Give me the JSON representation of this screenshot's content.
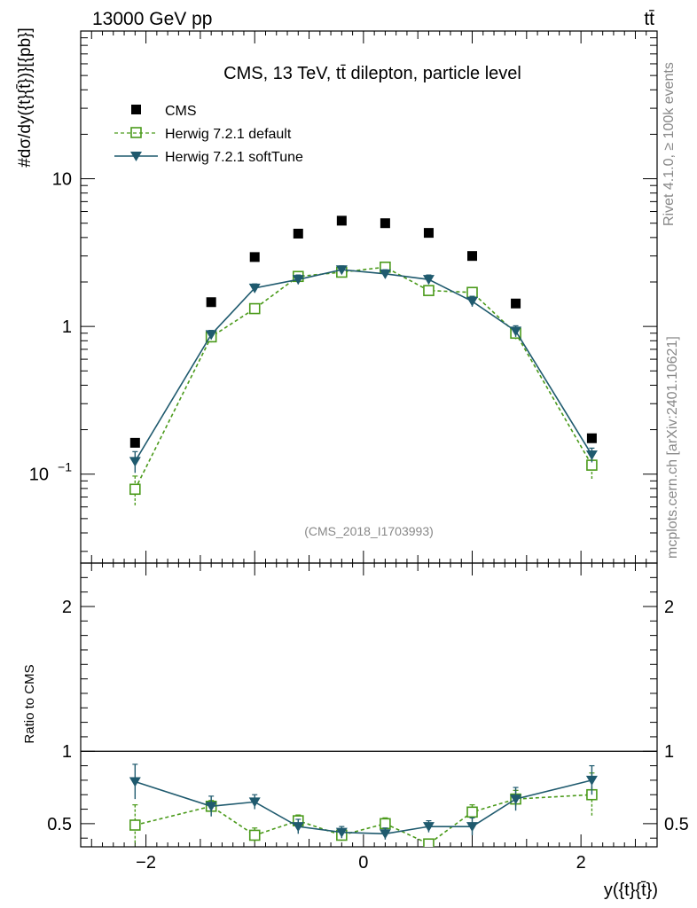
{
  "header": {
    "left": "13000 GeV pp",
    "right": "tt̄"
  },
  "side": {
    "rivet": "Rivet 4.1.0, ≥ 100k events",
    "mcplots": "mcplots.cern.ch [arXiv:2401.10621]"
  },
  "colors": {
    "cms": "#000000",
    "default": "#4a9a1a",
    "soft": "#1f5a6e"
  },
  "chart_data": [
    {
      "type": "scatter",
      "title": "CMS, 13 TeV, tt̄ dilepton, particle level",
      "ylabel": "#dσ/dy({t}{t̄})}[{pb}]",
      "xlabel": "y({t}{t̄})",
      "watermark": "(CMS_2018_I1703993)",
      "xlim": [
        -2.6,
        2.7
      ],
      "ylim": [
        0.025,
        100
      ],
      "yscale": "log",
      "yticks": [
        {
          "v": 0.1,
          "label": "10",
          "sup": "−1"
        },
        {
          "v": 1,
          "label": "1",
          "sup": ""
        },
        {
          "v": 10,
          "label": "10",
          "sup": ""
        }
      ],
      "x": [
        -2.1,
        -1.4,
        -1.0,
        -0.6,
        -0.2,
        0.2,
        0.6,
        1.0,
        1.4,
        2.1
      ],
      "series": [
        {
          "name": "CMS",
          "values": [
            0.163,
            1.46,
            2.95,
            4.25,
            5.2,
            5.0,
            4.3,
            3.0,
            1.43,
            0.175
          ]
        },
        {
          "name": "Herwig 7.2.1 default",
          "values": [
            0.079,
            0.85,
            1.32,
            2.18,
            2.33,
            2.52,
            1.75,
            1.7,
            0.9,
            0.115
          ],
          "err": [
            0.018,
            0.07,
            0.1,
            0.12,
            0.12,
            0.15,
            0.1,
            0.1,
            0.08,
            0.022
          ]
        },
        {
          "name": "Herwig 7.2.1 softTune",
          "values": [
            0.122,
            0.88,
            1.82,
            2.08,
            2.42,
            2.27,
            2.08,
            1.48,
            0.93,
            0.135
          ],
          "err": [
            0.02,
            0.06,
            0.12,
            0.15,
            0.15,
            0.15,
            0.15,
            0.12,
            0.08,
            0.015
          ]
        }
      ]
    },
    {
      "type": "scatter",
      "ylabel": "Ratio to CMS",
      "xlabel": "y({t}{t̄})",
      "xlim": [
        -2.6,
        2.7
      ],
      "ylim": [
        0.34,
        2.3
      ],
      "ref": 1,
      "xticks": [
        {
          "v": -2,
          "label": "−2"
        },
        {
          "v": 0,
          "label": "0"
        },
        {
          "v": 2,
          "label": "2"
        }
      ],
      "yticks": [
        {
          "v": 0.5,
          "label": "0.5"
        },
        {
          "v": 1,
          "label": "1"
        },
        {
          "v": 2,
          "label": "2"
        }
      ],
      "x": [
        -2.1,
        -1.4,
        -1.0,
        -0.6,
        -0.2,
        0.2,
        0.6,
        1.0,
        1.4,
        2.1
      ],
      "series": [
        {
          "name": "Herwig 7.2.1 default",
          "values": [
            0.49,
            0.62,
            0.42,
            0.52,
            0.42,
            0.5,
            0.36,
            0.58,
            0.67,
            0.7
          ],
          "err": [
            0.14,
            0.04,
            0.05,
            0.04,
            0.04,
            0.04,
            0.03,
            0.05,
            0.06,
            0.15
          ]
        },
        {
          "name": "Herwig 7.2.1 softTune",
          "values": [
            0.79,
            0.62,
            0.65,
            0.48,
            0.44,
            0.43,
            0.48,
            0.48,
            0.67,
            0.8
          ],
          "err": [
            0.12,
            0.07,
            0.05,
            0.05,
            0.04,
            0.04,
            0.04,
            0.06,
            0.08,
            0.1
          ]
        }
      ]
    }
  ]
}
